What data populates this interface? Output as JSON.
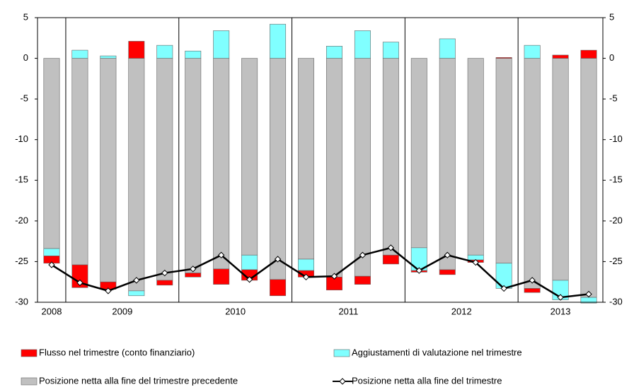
{
  "chart_data": {
    "type": "bar",
    "stacked": true,
    "groups": [
      {
        "label": "2008",
        "size": 1
      },
      {
        "label": "2009",
        "size": 4
      },
      {
        "label": "2010",
        "size": 4
      },
      {
        "label": "2011",
        "size": 4
      },
      {
        "label": "2012",
        "size": 4
      },
      {
        "label": "2013",
        "size": 3
      }
    ],
    "series": [
      {
        "name": "Posizione netta alla fine del trimestre precedente",
        "type": "bar",
        "color": "#c0c0c0",
        "values": [
          -23.4,
          -25.4,
          -27.5,
          -28.6,
          -27.3,
          -26.4,
          -25.9,
          -24.2,
          -27.2,
          -24.7,
          -26.9,
          -26.8,
          -24.2,
          -23.3,
          -26.0,
          -24.2,
          -25.2,
          -28.3,
          -27.3,
          -29.4
        ]
      },
      {
        "name": "Aggiustamenti di valutazione nel trimestre",
        "type": "bar",
        "color": "#80ffff",
        "values": [
          -0.9,
          1.0,
          0.3,
          -0.6,
          1.6,
          0.9,
          3.4,
          -1.8,
          4.2,
          -1.4,
          1.5,
          3.4,
          2.0,
          -2.8,
          2.4,
          -0.6,
          -3.1,
          1.6,
          -2.4,
          -0.7
        ]
      },
      {
        "name": "Flusso nel trimestre (conto finanziario)",
        "type": "bar",
        "color": "#ff0000",
        "values": [
          -0.9,
          -2.8,
          -0.9,
          2.1,
          -0.6,
          -0.5,
          -1.9,
          -1.3,
          -2.0,
          -0.8,
          -1.6,
          -1.0,
          -1.1,
          -0.2,
          -0.6,
          -0.3,
          0.1,
          -0.5,
          0.4,
          1.0
        ]
      },
      {
        "name": "Posizione netta alla fine del trimestre",
        "type": "line",
        "color": "#000000",
        "values": [
          -25.4,
          -27.6,
          -28.6,
          -27.3,
          -26.4,
          -25.9,
          -24.2,
          -27.2,
          -24.7,
          -26.9,
          -26.8,
          -24.2,
          -23.3,
          -26.1,
          -24.2,
          -25.1,
          -28.3,
          -27.3,
          -29.4,
          -29.0
        ]
      }
    ],
    "ylim": [
      -30,
      5
    ],
    "yticks": [
      5,
      0,
      -5,
      -10,
      -15,
      -20,
      -25,
      -30
    ],
    "y2lim": [
      -30,
      5
    ],
    "y2ticks": [
      5,
      0,
      -5,
      -10,
      -15,
      -20,
      -25,
      -30
    ]
  }
}
